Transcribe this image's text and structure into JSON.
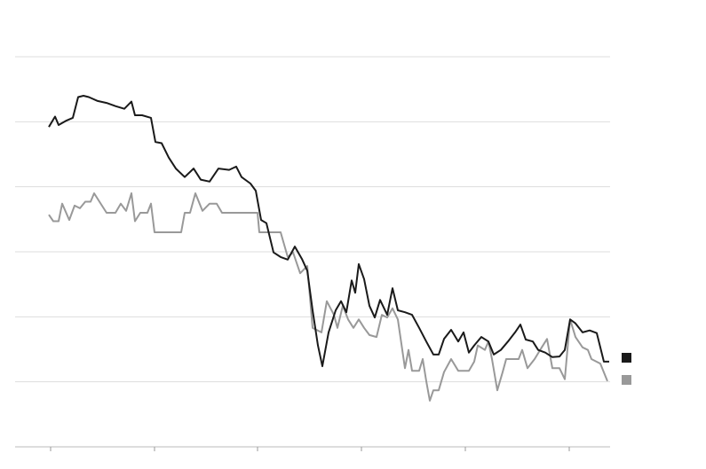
{
  "chart_data": {
    "type": "line",
    "series": [
      {
        "color": "#1a1a1a",
        "x": [
          -2,
          5,
          9,
          18,
          25,
          31,
          37,
          43,
          53,
          63,
          73,
          83,
          91,
          95,
          103,
          113,
          118,
          125,
          133,
          141,
          151,
          161,
          169,
          179,
          189,
          201,
          209,
          215,
          225,
          231,
          237,
          243,
          251,
          259,
          267,
          275,
          283,
          289,
          295,
          301,
          306,
          313,
          321,
          327,
          333,
          339,
          343,
          347,
          353,
          359,
          365,
          371,
          379,
          385,
          391,
          399,
          407,
          415,
          423,
          431,
          437,
          443,
          451,
          459,
          465,
          471,
          477,
          485,
          493,
          499,
          507,
          515,
          523,
          529,
          535,
          543,
          549,
          557,
          565,
          573,
          579,
          585,
          591,
          599,
          607,
          615,
          623,
          629
        ],
        "values": [
          4.92,
          5.08,
          4.95,
          5.02,
          5.06,
          5.38,
          5.4,
          5.38,
          5.32,
          5.29,
          5.24,
          5.2,
          5.31,
          5.1,
          5.1,
          5.06,
          4.69,
          4.67,
          4.45,
          4.28,
          4.15,
          4.28,
          4.11,
          4.08,
          4.28,
          4.26,
          4.31,
          4.15,
          4.05,
          3.94,
          3.49,
          3.44,
          2.99,
          2.92,
          2.88,
          3.08,
          2.89,
          2.71,
          2.1,
          1.56,
          1.24,
          1.76,
          2.1,
          2.24,
          2.07,
          2.56,
          2.37,
          2.81,
          2.58,
          2.17,
          1.99,
          2.26,
          2.03,
          2.44,
          2.1,
          2.07,
          2.03,
          1.83,
          1.62,
          1.42,
          1.42,
          1.66,
          1.8,
          1.62,
          1.76,
          1.45,
          1.56,
          1.69,
          1.62,
          1.42,
          1.49,
          1.62,
          1.76,
          1.88,
          1.65,
          1.62,
          1.49,
          1.45,
          1.38,
          1.39,
          1.49,
          1.96,
          1.9,
          1.76,
          1.79,
          1.75,
          1.31,
          1.31
        ]
      },
      {
        "color": "#999999",
        "x": [
          -2,
          3,
          9,
          13,
          21,
          27,
          33,
          39,
          45,
          49,
          55,
          63,
          73,
          79,
          85,
          91,
          95,
          101,
          109,
          113,
          117,
          123,
          147,
          151,
          157,
          163,
          171,
          179,
          187,
          193,
          233,
          235,
          259,
          267,
          273,
          281,
          289,
          295,
          305,
          311,
          319,
          323,
          329,
          335,
          341,
          347,
          353,
          359,
          367,
          373,
          379,
          385,
          391,
          399,
          403,
          407,
          415,
          419,
          423,
          427,
          431,
          437,
          443,
          451,
          459,
          471,
          477,
          481,
          489,
          493,
          497,
          503,
          509,
          513,
          527,
          531,
          537,
          545,
          553,
          559,
          565,
          573,
          579,
          585,
          591,
          599,
          605,
          609,
          619,
          627
        ],
        "values": [
          3.57,
          3.47,
          3.47,
          3.74,
          3.49,
          3.71,
          3.67,
          3.77,
          3.77,
          3.9,
          3.77,
          3.6,
          3.6,
          3.74,
          3.63,
          3.9,
          3.47,
          3.6,
          3.6,
          3.74,
          3.3,
          3.3,
          3.3,
          3.6,
          3.6,
          3.9,
          3.63,
          3.74,
          3.74,
          3.6,
          3.6,
          3.3,
          3.3,
          2.92,
          2.99,
          2.67,
          2.78,
          1.83,
          1.76,
          2.24,
          2.03,
          1.83,
          2.17,
          1.96,
          1.83,
          1.96,
          1.83,
          1.72,
          1.69,
          2.03,
          1.99,
          2.13,
          1.96,
          1.21,
          1.49,
          1.17,
          1.17,
          1.35,
          1.01,
          0.71,
          0.87,
          0.87,
          1.15,
          1.35,
          1.17,
          1.17,
          1.31,
          1.56,
          1.49,
          1.62,
          1.35,
          0.87,
          1.15,
          1.35,
          1.35,
          1.49,
          1.21,
          1.35,
          1.53,
          1.66,
          1.21,
          1.21,
          1.04,
          1.96,
          1.69,
          1.53,
          1.49,
          1.35,
          1.28,
          1.01
        ]
      }
    ],
    "xlim": [
      -40,
      630
    ],
    "xticks": [
      0,
      117,
      233,
      350,
      467,
      584
    ],
    "ylim": [
      0,
      6
    ],
    "yticks": [
      0,
      1,
      2,
      3,
      4,
      5,
      6
    ],
    "grid": true
  }
}
